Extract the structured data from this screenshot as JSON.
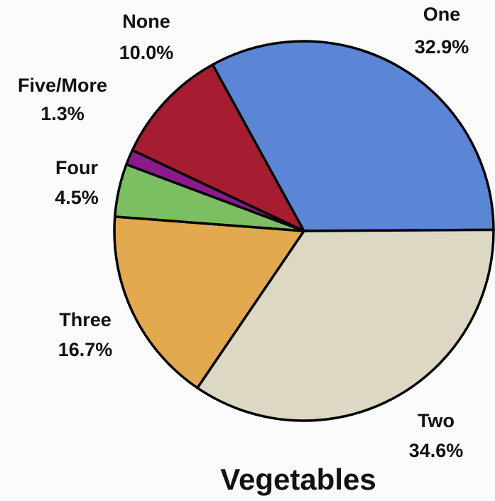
{
  "chart_data": {
    "type": "pie",
    "title": "Vegetables",
    "categories": [
      "One",
      "Two",
      "Three",
      "Four",
      "Five/More",
      "None"
    ],
    "values": [
      32.9,
      34.6,
      16.7,
      4.5,
      1.3,
      10.0
    ],
    "value_labels": [
      "32.9%",
      "34.6%",
      "16.7%",
      "4.5%",
      "1.3%",
      "10.0%"
    ],
    "colors": [
      "#5b86d6",
      "#ddd8c4",
      "#e2a94e",
      "#7bbf62",
      "#8b1a8b",
      "#a61c30"
    ]
  }
}
